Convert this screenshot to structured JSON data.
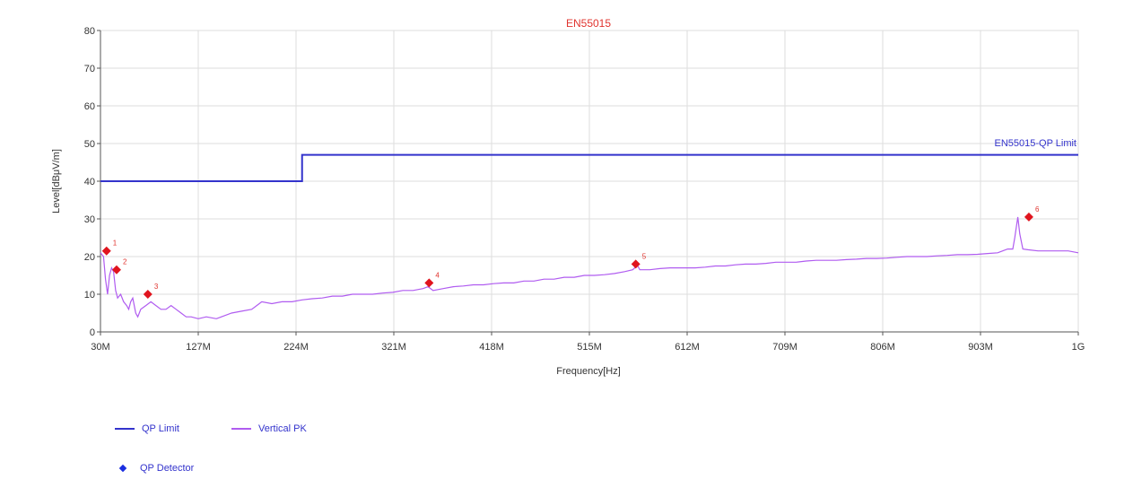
{
  "chart_data": {
    "type": "line",
    "title": "EN55015",
    "xlabel": "Frequency[Hz]",
    "ylabel": "Level[dBμV/m]",
    "xlim": [
      30,
      1000
    ],
    "ylim": [
      0,
      80
    ],
    "x_ticks": [
      {
        "value": 30,
        "label": "30M"
      },
      {
        "value": 127,
        "label": "127M"
      },
      {
        "value": 224,
        "label": "224M"
      },
      {
        "value": 321,
        "label": "321M"
      },
      {
        "value": 418,
        "label": "418M"
      },
      {
        "value": 515,
        "label": "515M"
      },
      {
        "value": 612,
        "label": "612M"
      },
      {
        "value": 709,
        "label": "709M"
      },
      {
        "value": 806,
        "label": "806M"
      },
      {
        "value": 903,
        "label": "903M"
      },
      {
        "value": 1000,
        "label": "1G"
      }
    ],
    "y_ticks": [
      0,
      10,
      20,
      30,
      40,
      50,
      60,
      70,
      80
    ],
    "grid": true,
    "limit_line": {
      "label": "EN55015-QP Limit",
      "color": "#3333cc",
      "points": [
        [
          30,
          40
        ],
        [
          230,
          40
        ],
        [
          230,
          47
        ],
        [
          1000,
          47
        ]
      ]
    },
    "series": [
      {
        "name": "Vertical PK",
        "color": "#b05cf0",
        "points": [
          [
            30,
            21
          ],
          [
            33,
            20
          ],
          [
            35,
            14
          ],
          [
            37,
            10
          ],
          [
            39,
            15
          ],
          [
            41,
            17
          ],
          [
            43,
            16
          ],
          [
            45,
            11
          ],
          [
            47,
            9
          ],
          [
            50,
            10
          ],
          [
            53,
            8
          ],
          [
            56,
            7
          ],
          [
            58,
            6
          ],
          [
            60,
            8
          ],
          [
            62,
            9
          ],
          [
            65,
            5
          ],
          [
            67,
            4
          ],
          [
            70,
            6
          ],
          [
            75,
            7
          ],
          [
            80,
            8
          ],
          [
            85,
            7
          ],
          [
            90,
            6
          ],
          [
            95,
            6
          ],
          [
            100,
            7
          ],
          [
            105,
            6
          ],
          [
            110,
            5
          ],
          [
            115,
            4
          ],
          [
            120,
            4
          ],
          [
            127,
            3.5
          ],
          [
            135,
            4
          ],
          [
            145,
            3.5
          ],
          [
            150,
            4
          ],
          [
            160,
            5
          ],
          [
            170,
            5.5
          ],
          [
            180,
            6
          ],
          [
            185,
            7
          ],
          [
            190,
            8
          ],
          [
            200,
            7.5
          ],
          [
            210,
            8
          ],
          [
            220,
            8
          ],
          [
            230,
            8.5
          ],
          [
            240,
            8.8
          ],
          [
            250,
            9
          ],
          [
            260,
            9.5
          ],
          [
            270,
            9.5
          ],
          [
            280,
            10
          ],
          [
            290,
            10
          ],
          [
            300,
            10
          ],
          [
            310,
            10.3
          ],
          [
            320,
            10.5
          ],
          [
            330,
            11
          ],
          [
            340,
            11
          ],
          [
            350,
            11.5
          ],
          [
            355,
            12
          ],
          [
            360,
            11
          ],
          [
            370,
            11.5
          ],
          [
            380,
            12
          ],
          [
            390,
            12.2
          ],
          [
            400,
            12.5
          ],
          [
            410,
            12.5
          ],
          [
            420,
            12.8
          ],
          [
            430,
            13
          ],
          [
            440,
            13
          ],
          [
            450,
            13.5
          ],
          [
            460,
            13.5
          ],
          [
            470,
            14
          ],
          [
            480,
            14
          ],
          [
            490,
            14.5
          ],
          [
            500,
            14.5
          ],
          [
            510,
            15
          ],
          [
            520,
            15
          ],
          [
            530,
            15.2
          ],
          [
            540,
            15.5
          ],
          [
            550,
            16
          ],
          [
            558,
            16.5
          ],
          [
            560,
            17
          ],
          [
            562,
            18
          ],
          [
            565,
            16.5
          ],
          [
            575,
            16.5
          ],
          [
            585,
            16.8
          ],
          [
            595,
            17
          ],
          [
            605,
            17
          ],
          [
            612,
            17
          ],
          [
            620,
            17
          ],
          [
            630,
            17.2
          ],
          [
            640,
            17.5
          ],
          [
            650,
            17.5
          ],
          [
            660,
            17.8
          ],
          [
            670,
            18
          ],
          [
            680,
            18
          ],
          [
            690,
            18.2
          ],
          [
            700,
            18.5
          ],
          [
            709,
            18.5
          ],
          [
            720,
            18.5
          ],
          [
            730,
            18.8
          ],
          [
            740,
            19
          ],
          [
            750,
            19
          ],
          [
            760,
            19
          ],
          [
            770,
            19.2
          ],
          [
            780,
            19.3
          ],
          [
            790,
            19.5
          ],
          [
            800,
            19.5
          ],
          [
            810,
            19.6
          ],
          [
            820,
            19.8
          ],
          [
            830,
            20
          ],
          [
            840,
            20
          ],
          [
            850,
            20
          ],
          [
            860,
            20.2
          ],
          [
            870,
            20.3
          ],
          [
            880,
            20.5
          ],
          [
            890,
            20.5
          ],
          [
            900,
            20.6
          ],
          [
            910,
            20.8
          ],
          [
            920,
            21
          ],
          [
            925,
            21.5
          ],
          [
            930,
            22
          ],
          [
            935,
            22
          ],
          [
            937,
            25
          ],
          [
            940,
            30.5
          ],
          [
            942,
            26
          ],
          [
            945,
            22
          ],
          [
            950,
            21.8
          ],
          [
            960,
            21.5
          ],
          [
            970,
            21.5
          ],
          [
            980,
            21.5
          ],
          [
            990,
            21.5
          ],
          [
            1000,
            21
          ]
        ]
      }
    ],
    "markers": [
      {
        "label": "1",
        "x": 36,
        "y": 21.5
      },
      {
        "label": "2",
        "x": 46,
        "y": 16.5
      },
      {
        "label": "3",
        "x": 77,
        "y": 10
      },
      {
        "label": "4",
        "x": 356,
        "y": 13
      },
      {
        "label": "5",
        "x": 561,
        "y": 18
      },
      {
        "label": "6",
        "x": 951,
        "y": 30.5
      }
    ],
    "marker_color": "#e0141e",
    "legend": [
      {
        "label": "QP Limit",
        "color": "#3333cc",
        "kind": "line"
      },
      {
        "label": "Vertical PK",
        "color": "#b05cf0",
        "kind": "line"
      },
      {
        "label": "QP Detector",
        "color": "#1a2ee0",
        "kind": "diamond"
      }
    ],
    "legend_position": "bottom-left"
  }
}
